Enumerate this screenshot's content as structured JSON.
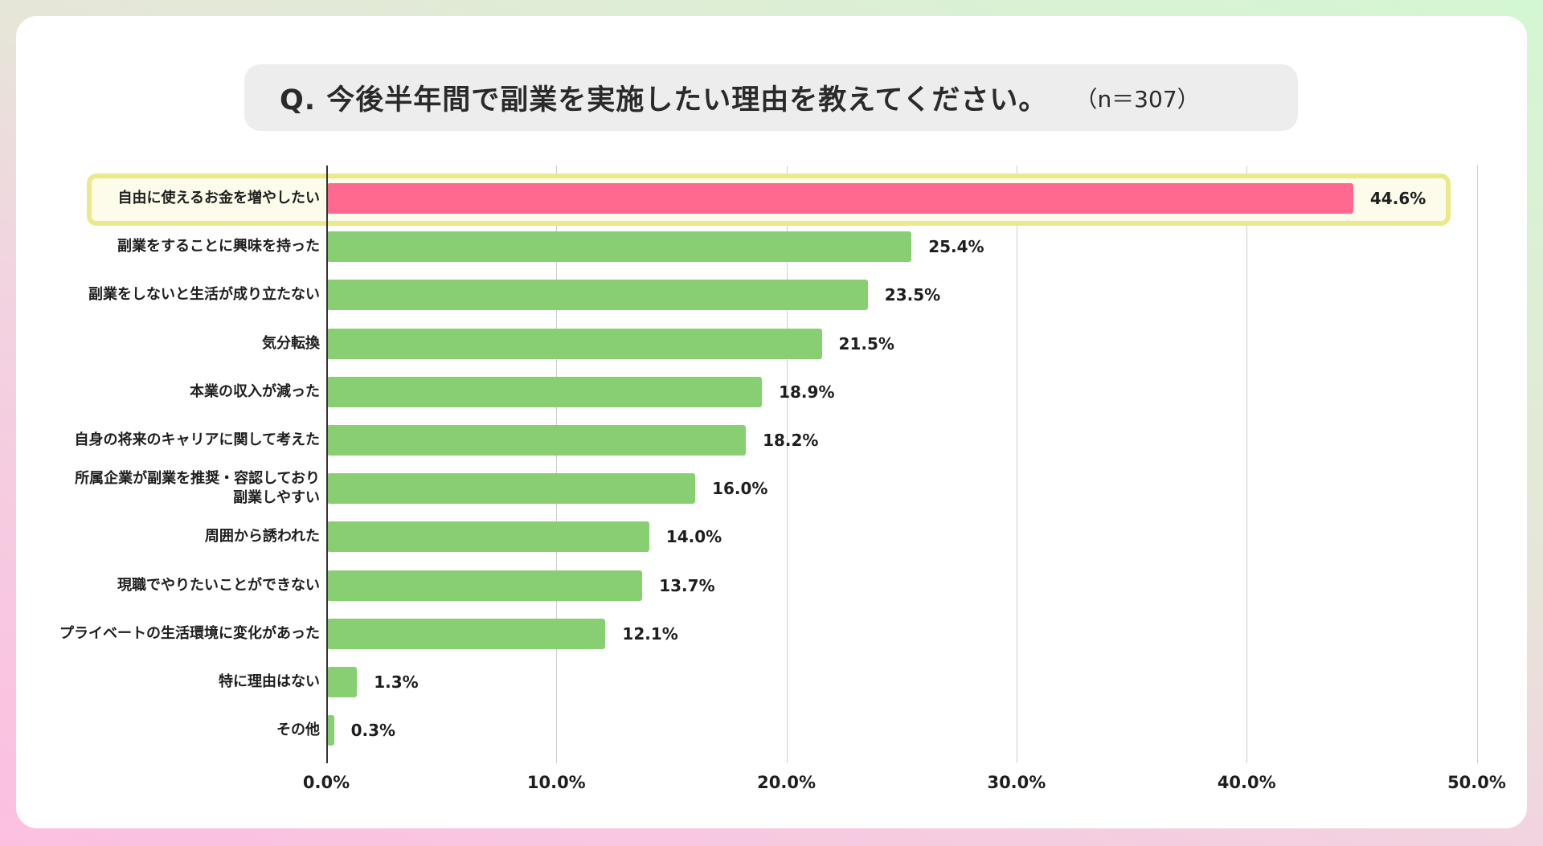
{
  "title": {
    "question": "Q. 今後半年間で副業を実施したい理由を教えてください。",
    "sample": "（n＝307）"
  },
  "colors": {
    "highlight_bar": "#ff6990",
    "bar": "#88cf73",
    "highlight_border": "#ece98a",
    "highlight_fill": "#fdfceb"
  },
  "chart_data": {
    "type": "bar",
    "orientation": "horizontal",
    "title": "Q. 今後半年間で副業を実施したい理由を教えてください。（n＝307）",
    "xlabel": "",
    "ylabel": "",
    "xlim": [
      0,
      50
    ],
    "grid": true,
    "x_ticks": [
      "0.0%",
      "10.0%",
      "20.0%",
      "30.0%",
      "40.0%",
      "50.0%"
    ],
    "highlighted_category": "自由に使えるお金を増やしたい",
    "categories": [
      "自由に使えるお金を増やしたい",
      "副業をすることに興味を持った",
      "副業をしないと生活が成り立たない",
      "気分転換",
      "本業の収入が減った",
      "自身の将来のキャリアに関して考えた",
      "所属企業が副業を推奨・容認しており\n副業しやすい",
      "周囲から誘われた",
      "現職でやりたいことができない",
      "プライベートの生活環境に変化があった",
      "特に理由はない",
      "その他"
    ],
    "values": [
      44.6,
      25.4,
      23.5,
      21.5,
      18.9,
      18.2,
      16.0,
      14.0,
      13.7,
      12.1,
      1.3,
      0.3
    ],
    "value_labels": [
      "44.6%",
      "25.4%",
      "23.5%",
      "21.5%",
      "18.9%",
      "18.2%",
      "16.0%",
      "14.0%",
      "13.7%",
      "12.1%",
      "1.3%",
      "0.3%"
    ]
  }
}
